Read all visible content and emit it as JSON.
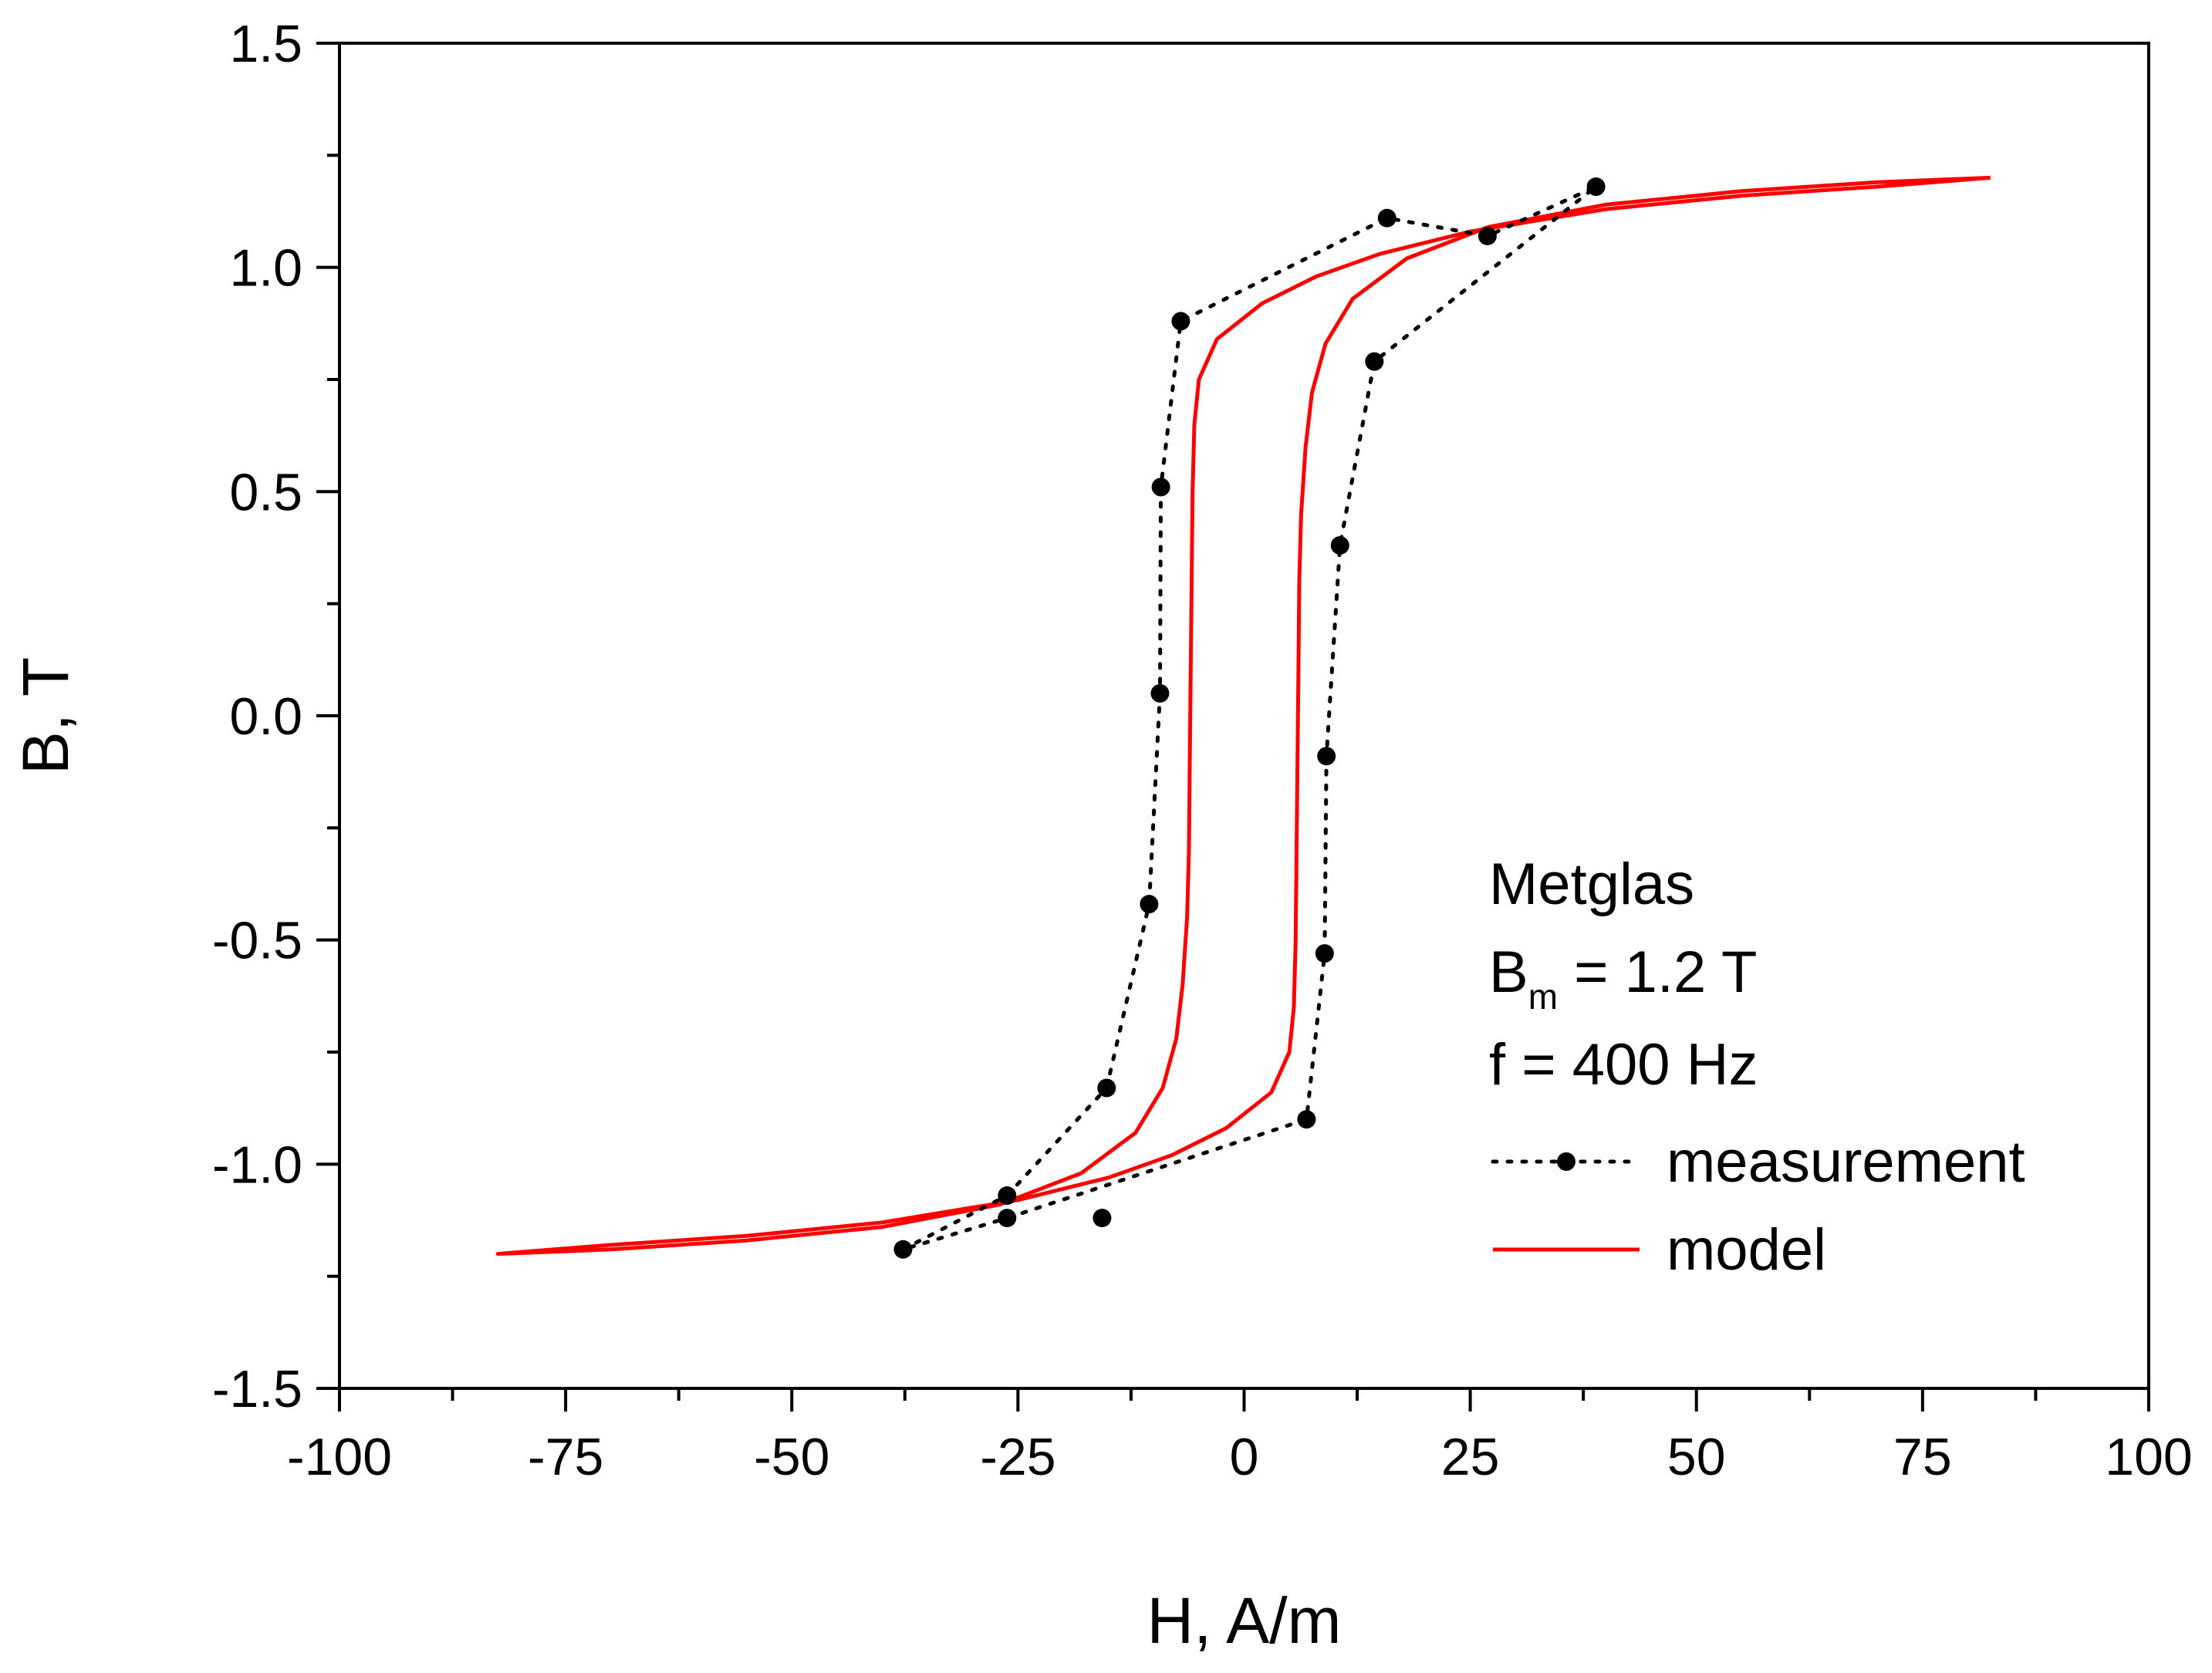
{
  "chart_data": {
    "type": "line",
    "title": "",
    "xlabel": "H, A/m",
    "ylabel": "B, T",
    "xlim": [
      -100,
      100
    ],
    "ylim": [
      -1.5,
      1.5
    ],
    "xticks": [
      -100,
      -75,
      -50,
      -25,
      0,
      25,
      50,
      75,
      100
    ],
    "xtick_labels": [
      "-100",
      "-75",
      "-50",
      "-25",
      "0",
      "25",
      "50",
      "75",
      "100"
    ],
    "yticks": [
      -1.5,
      -1.0,
      -0.5,
      0.0,
      0.5,
      1.0,
      1.5
    ],
    "ytick_labels": [
      "-1.5",
      "-1.0",
      "-0.5",
      "0.0",
      "0.5",
      "1.0",
      "1.5"
    ],
    "grid": false,
    "annotation": {
      "line1": "Metglas",
      "line2_main": "B",
      "line2_sub": "m",
      "line2_rest": " = 1.2 T",
      "line3": "f = 400 Hz"
    },
    "legend_position": "bottom-right",
    "series": [
      {
        "name": "measurement",
        "style": "dotted-markers",
        "color": "#000000",
        "x": [
          -37.7,
          -26.2,
          -15.2,
          -10.5,
          -9.3,
          -9.2,
          -7.0,
          15.8,
          26.9,
          38.9,
          14.4,
          10.6,
          9.1,
          8.9,
          6.9,
          -26.2,
          -37.7
        ],
        "y": [
          -1.19,
          -1.07,
          -0.83,
          -0.42,
          0.05,
          0.51,
          0.88,
          1.11,
          1.07,
          1.18,
          0.79,
          0.38,
          -0.09,
          -0.53,
          -0.9,
          -1.12,
          -1.19
        ],
        "markers_x": [
          -37.7,
          -26.2,
          -26.2,
          -15.7,
          -15.2,
          -10.5,
          -9.3,
          -9.2,
          -7.0,
          15.8,
          26.9,
          38.9,
          14.4,
          10.6,
          9.1,
          8.9,
          6.9
        ],
        "markers_y": [
          -1.19,
          -1.07,
          -1.12,
          -1.12,
          -0.83,
          -0.42,
          0.05,
          0.51,
          0.88,
          1.11,
          1.07,
          1.18,
          0.79,
          0.38,
          -0.09,
          -0.53,
          -0.9
        ]
      },
      {
        "name": "model",
        "style": "solid",
        "color": "#ff0000",
        "x": [
          82.5,
          70,
          55,
          40,
          27,
          18,
          12,
          9,
          7.5,
          6.8,
          6.3,
          6.1,
          6.0,
          5.9,
          5.8,
          5.7,
          5.5,
          5.0,
          3.0,
          -2.0,
          -8.0,
          -15.0,
          -25.0,
          -40.0,
          -55.0,
          -70.0,
          -82.5,
          -70,
          -55,
          -40,
          -27,
          -18,
          -12,
          -9,
          -7.5,
          -6.8,
          -6.3,
          -6.1,
          -6.0,
          -5.9,
          -5.8,
          -5.7,
          -5.5,
          -5.0,
          -3.0,
          2.0,
          8.0,
          15.0,
          25.0,
          40.0,
          55.0,
          70.0,
          82.5
        ],
        "y": [
          1.2,
          1.19,
          1.17,
          1.14,
          1.09,
          1.02,
          0.93,
          0.83,
          0.72,
          0.6,
          0.45,
          0.3,
          0.1,
          -0.1,
          -0.3,
          -0.5,
          -0.65,
          -0.75,
          -0.84,
          -0.92,
          -0.98,
          -1.03,
          -1.08,
          -1.13,
          -1.16,
          -1.18,
          -1.2,
          -1.19,
          -1.17,
          -1.14,
          -1.09,
          -1.02,
          -0.93,
          -0.83,
          -0.72,
          -0.6,
          -0.45,
          -0.3,
          -0.1,
          0.1,
          0.3,
          0.5,
          0.65,
          0.75,
          0.84,
          0.92,
          0.98,
          1.03,
          1.08,
          1.13,
          1.16,
          1.18,
          1.2
        ]
      }
    ]
  }
}
